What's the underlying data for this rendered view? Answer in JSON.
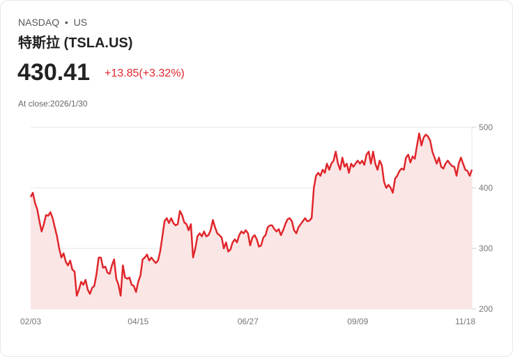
{
  "header": {
    "exchange": "NASDAQ",
    "sep": "•",
    "market": "US",
    "title": "特斯拉 (TSLA.US)",
    "price": "430.41",
    "change": "+13.85(+3.32%)",
    "close_label": "At close:2026/1/30"
  },
  "colors": {
    "line": "#e0262b",
    "fill": "#fbe6e6",
    "grid": "#e6e6e6"
  },
  "chart_data": {
    "type": "area",
    "title": "TSLA.US",
    "xlabel": "",
    "ylabel": "",
    "ylim": [
      200,
      500
    ],
    "yticks": [
      500,
      400,
      300,
      200
    ],
    "xticks": [
      "02/03",
      "04/15",
      "06/27",
      "09/09",
      "11/18"
    ],
    "xtick_index": [
      0,
      49,
      99,
      149,
      198
    ],
    "y_axis": "right",
    "grid": true,
    "values": [
      385,
      392,
      375,
      365,
      345,
      328,
      340,
      355,
      354,
      360,
      350,
      335,
      320,
      300,
      285,
      292,
      278,
      272,
      280,
      265,
      262,
      222,
      232,
      245,
      240,
      248,
      232,
      225,
      235,
      238,
      258,
      285,
      285,
      268,
      270,
      260,
      258,
      272,
      282,
      250,
      240,
      222,
      272,
      252,
      250,
      252,
      240,
      238,
      228,
      245,
      255,
      282,
      285,
      290,
      280,
      285,
      280,
      276,
      280,
      295,
      320,
      345,
      350,
      342,
      350,
      342,
      338,
      340,
      362,
      355,
      343,
      340,
      330,
      340,
      285,
      300,
      320,
      325,
      320,
      328,
      320,
      322,
      330,
      347,
      335,
      325,
      322,
      318,
      300,
      310,
      295,
      298,
      310,
      315,
      310,
      322,
      328,
      325,
      330,
      325,
      305,
      318,
      322,
      315,
      303,
      305,
      318,
      322,
      335,
      338,
      338,
      332,
      328,
      332,
      322,
      330,
      340,
      348,
      350,
      345,
      330,
      325,
      335,
      340,
      345,
      350,
      345,
      346,
      350,
      400,
      420,
      425,
      420,
      430,
      425,
      440,
      430,
      440,
      445,
      460,
      440,
      430,
      450,
      435,
      440,
      425,
      440,
      435,
      440,
      445,
      440,
      445,
      438,
      455,
      460,
      440,
      460,
      440,
      430,
      445,
      437,
      410,
      400,
      405,
      400,
      392,
      415,
      420,
      428,
      432,
      430,
      450,
      455,
      442,
      452,
      448,
      470,
      490,
      470,
      483,
      488,
      485,
      478,
      460,
      450,
      440,
      450,
      435,
      432,
      440,
      445,
      440,
      436,
      435,
      420,
      440,
      450,
      440,
      430,
      428,
      420,
      430
    ]
  }
}
